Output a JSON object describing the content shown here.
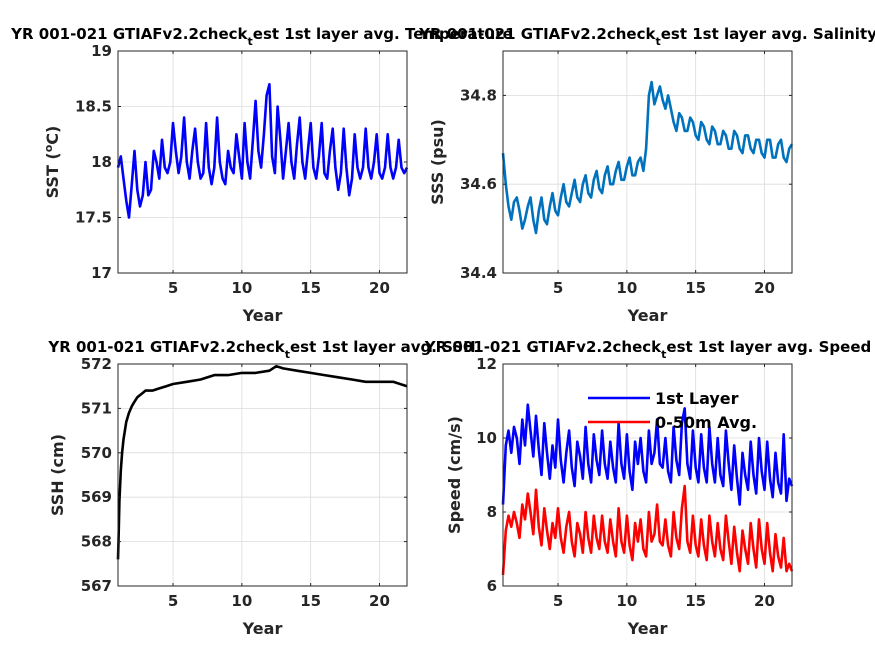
{
  "chart_data": [
    {
      "type": "line",
      "title_main": "YR 001-021 GTIAFv2.2check",
      "title_sub": "t",
      "title_rest": "est 1st layer avg. Temperature",
      "xlabel": "Year",
      "ylabel": "SST (",
      "ylabel_sup": "o",
      "ylabel_end": "C)",
      "xlim": [
        1,
        22
      ],
      "ylim": [
        17,
        19
      ],
      "xticks": [
        5,
        10,
        15,
        20
      ],
      "yticks": [
        17,
        17.5,
        18,
        18.5,
        19
      ],
      "grid": true,
      "series": [
        {
          "color": "#0000ff",
          "x": [
            1.0,
            1.2,
            1.4,
            1.6,
            1.8,
            2.0,
            2.2,
            2.4,
            2.6,
            2.8,
            3.0,
            3.2,
            3.4,
            3.6,
            3.8,
            4.0,
            4.2,
            4.4,
            4.6,
            4.8,
            5.0,
            5.2,
            5.4,
            5.6,
            5.8,
            6.0,
            6.2,
            6.4,
            6.6,
            6.8,
            7.0,
            7.2,
            7.4,
            7.6,
            7.8,
            8.0,
            8.2,
            8.4,
            8.6,
            8.8,
            9.0,
            9.2,
            9.4,
            9.6,
            9.8,
            10.0,
            10.2,
            10.4,
            10.6,
            10.8,
            11.0,
            11.2,
            11.4,
            11.6,
            11.8,
            12.0,
            12.2,
            12.4,
            12.6,
            12.8,
            13.0,
            13.2,
            13.4,
            13.6,
            13.8,
            14.0,
            14.2,
            14.4,
            14.6,
            14.8,
            15.0,
            15.2,
            15.4,
            15.6,
            15.8,
            16.0,
            16.2,
            16.4,
            16.6,
            16.8,
            17.0,
            17.2,
            17.4,
            17.6,
            17.8,
            18.0,
            18.2,
            18.4,
            18.6,
            18.8,
            19.0,
            19.2,
            19.4,
            19.6,
            19.8,
            20.0,
            20.2,
            20.4,
            20.6,
            20.8,
            21.0,
            21.2,
            21.4,
            21.6,
            21.8,
            22.0
          ],
          "y": [
            17.95,
            18.05,
            17.85,
            17.65,
            17.5,
            17.8,
            18.1,
            17.75,
            17.6,
            17.7,
            18.0,
            17.7,
            17.75,
            18.1,
            18.0,
            17.85,
            18.2,
            17.95,
            17.9,
            18.0,
            18.35,
            18.1,
            17.9,
            18.05,
            18.4,
            18.0,
            17.85,
            18.1,
            18.3,
            18.0,
            17.85,
            17.9,
            18.35,
            17.95,
            17.8,
            17.95,
            18.4,
            18.0,
            17.85,
            17.8,
            18.1,
            17.95,
            17.9,
            18.25,
            18.05,
            17.85,
            18.35,
            18.0,
            17.85,
            18.2,
            18.55,
            18.1,
            17.95,
            18.25,
            18.6,
            18.7,
            18.05,
            17.9,
            18.5,
            18.2,
            17.85,
            18.1,
            18.35,
            18.0,
            17.85,
            18.15,
            18.4,
            18.0,
            17.85,
            18.1,
            18.35,
            17.95,
            17.85,
            18.05,
            18.35,
            17.9,
            17.85,
            18.1,
            18.3,
            17.95,
            17.75,
            17.9,
            18.3,
            17.95,
            17.7,
            17.85,
            18.25,
            17.95,
            17.85,
            17.95,
            18.3,
            17.95,
            17.85,
            18.0,
            18.25,
            17.9,
            17.85,
            17.95,
            18.25,
            17.95,
            17.85,
            17.95,
            18.2,
            17.95,
            17.9,
            17.95
          ]
        }
      ]
    },
    {
      "type": "line",
      "title_main": "YR 001-021 GTIAFv2.2check",
      "title_sub": "t",
      "title_rest": "est 1st layer avg. Salinity",
      "xlabel": "Year",
      "ylabel": "SSS (psu)",
      "xlim": [
        1,
        22
      ],
      "ylim": [
        34.4,
        34.9
      ],
      "xticks": [
        5,
        10,
        15,
        20
      ],
      "yticks": [
        34.4,
        34.6,
        34.8
      ],
      "grid": true,
      "series": [
        {
          "color": "#0072bd",
          "x": [
            1.0,
            1.2,
            1.4,
            1.6,
            1.8,
            2.0,
            2.2,
            2.4,
            2.6,
            2.8,
            3.0,
            3.2,
            3.4,
            3.6,
            3.8,
            4.0,
            4.2,
            4.4,
            4.6,
            4.8,
            5.0,
            5.2,
            5.4,
            5.6,
            5.8,
            6.0,
            6.2,
            6.4,
            6.6,
            6.8,
            7.0,
            7.2,
            7.4,
            7.6,
            7.8,
            8.0,
            8.2,
            8.4,
            8.6,
            8.8,
            9.0,
            9.2,
            9.4,
            9.6,
            9.8,
            10.0,
            10.2,
            10.4,
            10.6,
            10.8,
            11.0,
            11.2,
            11.4,
            11.6,
            11.8,
            12.0,
            12.2,
            12.4,
            12.6,
            12.8,
            13.0,
            13.2,
            13.4,
            13.6,
            13.8,
            14.0,
            14.2,
            14.4,
            14.6,
            14.8,
            15.0,
            15.2,
            15.4,
            15.6,
            15.8,
            16.0,
            16.2,
            16.4,
            16.6,
            16.8,
            17.0,
            17.2,
            17.4,
            17.6,
            17.8,
            18.0,
            18.2,
            18.4,
            18.6,
            18.8,
            19.0,
            19.2,
            19.4,
            19.6,
            19.8,
            20.0,
            20.2,
            20.4,
            20.6,
            20.8,
            21.0,
            21.2,
            21.4,
            21.6,
            21.8,
            22.0
          ],
          "y": [
            34.67,
            34.6,
            34.55,
            34.52,
            34.56,
            34.57,
            34.54,
            34.5,
            34.52,
            34.55,
            34.57,
            34.52,
            34.49,
            34.54,
            34.57,
            34.52,
            34.51,
            34.55,
            34.58,
            34.54,
            34.53,
            34.57,
            34.6,
            34.56,
            34.55,
            34.58,
            34.61,
            34.57,
            34.56,
            34.6,
            34.62,
            34.58,
            34.57,
            34.61,
            34.63,
            34.59,
            34.58,
            34.62,
            34.64,
            34.6,
            34.6,
            34.63,
            34.65,
            34.61,
            34.61,
            34.64,
            34.66,
            34.62,
            34.62,
            34.65,
            34.66,
            34.63,
            34.68,
            34.8,
            34.83,
            34.78,
            34.8,
            34.82,
            34.79,
            34.77,
            34.8,
            34.77,
            34.74,
            34.72,
            34.76,
            34.75,
            34.72,
            34.72,
            34.75,
            34.74,
            34.71,
            34.7,
            34.74,
            34.73,
            34.7,
            34.69,
            34.73,
            34.72,
            34.69,
            34.69,
            34.72,
            34.71,
            34.68,
            34.68,
            34.72,
            34.71,
            34.68,
            34.67,
            34.71,
            34.71,
            34.68,
            34.67,
            34.7,
            34.7,
            34.67,
            34.66,
            34.7,
            34.7,
            34.66,
            34.66,
            34.69,
            34.7,
            34.66,
            34.65,
            34.68,
            34.69
          ]
        }
      ]
    },
    {
      "type": "line",
      "title_main": "YR 001-021 GTIAFv2.2check",
      "title_sub": "t",
      "title_rest": "est 1st layer avg. SSH",
      "xlabel": "Year",
      "ylabel": "SSH (cm)",
      "xlim": [
        1,
        22
      ],
      "ylim": [
        567,
        572
      ],
      "xticks": [
        5,
        10,
        15,
        20
      ],
      "yticks": [
        567,
        568,
        569,
        570,
        571,
        572
      ],
      "grid": true,
      "series": [
        {
          "color": "#000000",
          "x": [
            1.0,
            1.05,
            1.1,
            1.2,
            1.3,
            1.4,
            1.5,
            1.6,
            1.8,
            2.0,
            2.2,
            2.4,
            2.6,
            2.8,
            3.0,
            3.5,
            4.0,
            4.5,
            5.0,
            6.0,
            7.0,
            8.0,
            9.0,
            10.0,
            11.0,
            12.0,
            12.5,
            13.0,
            14.0,
            15.0,
            16.0,
            17.0,
            18.0,
            19.0,
            20.0,
            21.0,
            22.0
          ],
          "y": [
            567.6,
            568.2,
            568.9,
            569.6,
            570.0,
            570.3,
            570.5,
            570.7,
            570.9,
            571.05,
            571.15,
            571.25,
            571.3,
            571.35,
            571.4,
            571.4,
            571.45,
            571.5,
            571.55,
            571.6,
            571.65,
            571.75,
            571.75,
            571.8,
            571.8,
            571.85,
            571.95,
            571.9,
            571.85,
            571.8,
            571.75,
            571.7,
            571.65,
            571.6,
            571.6,
            571.6,
            571.5
          ]
        }
      ]
    },
    {
      "type": "line",
      "title_main": "YR 001-021 GTIAFv2.2check",
      "title_sub": "t",
      "title_rest": "est 1st layer avg. Speed",
      "xlabel": "Year",
      "ylabel": "Speed (cm/s)",
      "xlim": [
        1,
        22
      ],
      "ylim": [
        6,
        12
      ],
      "xticks": [
        5,
        10,
        15,
        20
      ],
      "yticks": [
        6,
        8,
        10,
        12
      ],
      "grid": true,
      "legend": "top-right",
      "series": [
        {
          "name": "1st Layer",
          "color": "#0000ff",
          "x": [
            1.0,
            1.2,
            1.4,
            1.6,
            1.8,
            2.0,
            2.2,
            2.4,
            2.6,
            2.8,
            3.0,
            3.2,
            3.4,
            3.6,
            3.8,
            4.0,
            4.2,
            4.4,
            4.6,
            4.8,
            5.0,
            5.2,
            5.4,
            5.6,
            5.8,
            6.0,
            6.2,
            6.4,
            6.6,
            6.8,
            7.0,
            7.2,
            7.4,
            7.6,
            7.8,
            8.0,
            8.2,
            8.4,
            8.6,
            8.8,
            9.0,
            9.2,
            9.4,
            9.6,
            9.8,
            10.0,
            10.2,
            10.4,
            10.6,
            10.8,
            11.0,
            11.2,
            11.4,
            11.6,
            11.8,
            12.0,
            12.2,
            12.4,
            12.6,
            12.8,
            13.0,
            13.2,
            13.4,
            13.6,
            13.8,
            14.0,
            14.2,
            14.4,
            14.6,
            14.8,
            15.0,
            15.2,
            15.4,
            15.6,
            15.8,
            16.0,
            16.2,
            16.4,
            16.6,
            16.8,
            17.0,
            17.2,
            17.4,
            17.6,
            17.8,
            18.0,
            18.2,
            18.4,
            18.6,
            18.8,
            19.0,
            19.2,
            19.4,
            19.6,
            19.8,
            20.0,
            20.2,
            20.4,
            20.6,
            20.8,
            21.0,
            21.2,
            21.4,
            21.6,
            21.8,
            22.0
          ],
          "y": [
            8.2,
            9.8,
            10.2,
            9.6,
            10.3,
            10.0,
            9.3,
            10.5,
            9.8,
            10.9,
            10.2,
            9.5,
            10.6,
            9.7,
            9.0,
            10.4,
            9.6,
            8.9,
            9.8,
            9.2,
            10.5,
            9.4,
            8.8,
            9.6,
            10.2,
            9.2,
            8.7,
            9.9,
            9.5,
            8.9,
            10.3,
            9.3,
            8.8,
            10.1,
            9.4,
            9.0,
            10.2,
            9.3,
            8.9,
            9.9,
            9.2,
            8.8,
            10.4,
            9.3,
            8.9,
            10.1,
            9.1,
            8.6,
            9.9,
            9.3,
            10.0,
            9.1,
            8.8,
            10.2,
            9.3,
            9.6,
            10.5,
            9.3,
            9.2,
            10.0,
            9.1,
            8.8,
            10.3,
            9.4,
            9.0,
            10.4,
            10.8,
            9.3,
            8.9,
            10.2,
            9.2,
            8.8,
            10.1,
            9.2,
            8.8,
            10.3,
            9.3,
            8.8,
            10.0,
            9.0,
            8.7,
            10.2,
            9.3,
            8.6,
            9.8,
            8.9,
            8.2,
            9.6,
            9.0,
            8.6,
            9.9,
            9.0,
            8.5,
            10.0,
            9.1,
            8.6,
            9.9,
            8.9,
            8.4,
            9.6,
            8.8,
            8.5,
            10.1,
            8.3,
            8.9,
            8.7
          ]
        },
        {
          "name": "0-50m Avg.",
          "color": "#ff0000",
          "x": [
            1.0,
            1.2,
            1.4,
            1.6,
            1.8,
            2.0,
            2.2,
            2.4,
            2.6,
            2.8,
            3.0,
            3.2,
            3.4,
            3.6,
            3.8,
            4.0,
            4.2,
            4.4,
            4.6,
            4.8,
            5.0,
            5.2,
            5.4,
            5.6,
            5.8,
            6.0,
            6.2,
            6.4,
            6.6,
            6.8,
            7.0,
            7.2,
            7.4,
            7.6,
            7.8,
            8.0,
            8.2,
            8.4,
            8.6,
            8.8,
            9.0,
            9.2,
            9.4,
            9.6,
            9.8,
            10.0,
            10.2,
            10.4,
            10.6,
            10.8,
            11.0,
            11.2,
            11.4,
            11.6,
            11.8,
            12.0,
            12.2,
            12.4,
            12.6,
            12.8,
            13.0,
            13.2,
            13.4,
            13.6,
            13.8,
            14.0,
            14.2,
            14.4,
            14.6,
            14.8,
            15.0,
            15.2,
            15.4,
            15.6,
            15.8,
            16.0,
            16.2,
            16.4,
            16.6,
            16.8,
            17.0,
            17.2,
            17.4,
            17.6,
            17.8,
            18.0,
            18.2,
            18.4,
            18.6,
            18.8,
            19.0,
            19.2,
            19.4,
            19.6,
            19.8,
            20.0,
            20.2,
            20.4,
            20.6,
            20.8,
            21.0,
            21.2,
            21.4,
            21.6,
            21.8,
            22.0
          ],
          "y": [
            6.3,
            7.5,
            7.9,
            7.6,
            8.0,
            7.7,
            7.3,
            8.2,
            7.8,
            8.5,
            8.0,
            7.4,
            8.6,
            7.6,
            7.1,
            8.1,
            7.5,
            7.0,
            7.7,
            7.3,
            8.1,
            7.3,
            6.9,
            7.6,
            8.0,
            7.2,
            6.8,
            7.7,
            7.4,
            6.9,
            8.0,
            7.3,
            6.9,
            7.9,
            7.3,
            7.0,
            7.9,
            7.2,
            6.9,
            7.8,
            7.2,
            6.8,
            8.1,
            7.2,
            6.9,
            7.9,
            7.1,
            6.7,
            7.7,
            7.2,
            7.8,
            7.0,
            6.8,
            8.0,
            7.2,
            7.4,
            8.2,
            7.2,
            7.1,
            7.8,
            7.1,
            6.8,
            8.0,
            7.3,
            7.0,
            8.1,
            8.7,
            7.2,
            6.9,
            7.9,
            7.1,
            6.8,
            7.8,
            7.1,
            6.7,
            7.9,
            7.2,
            6.8,
            7.7,
            7.0,
            6.7,
            7.9,
            7.2,
            6.6,
            7.6,
            6.9,
            6.4,
            7.5,
            7.0,
            6.6,
            7.7,
            7.0,
            6.5,
            7.8,
            7.0,
            6.6,
            7.7,
            6.9,
            6.4,
            7.4,
            6.8,
            6.5,
            7.3,
            6.4,
            6.6,
            6.4
          ]
        }
      ]
    }
  ]
}
